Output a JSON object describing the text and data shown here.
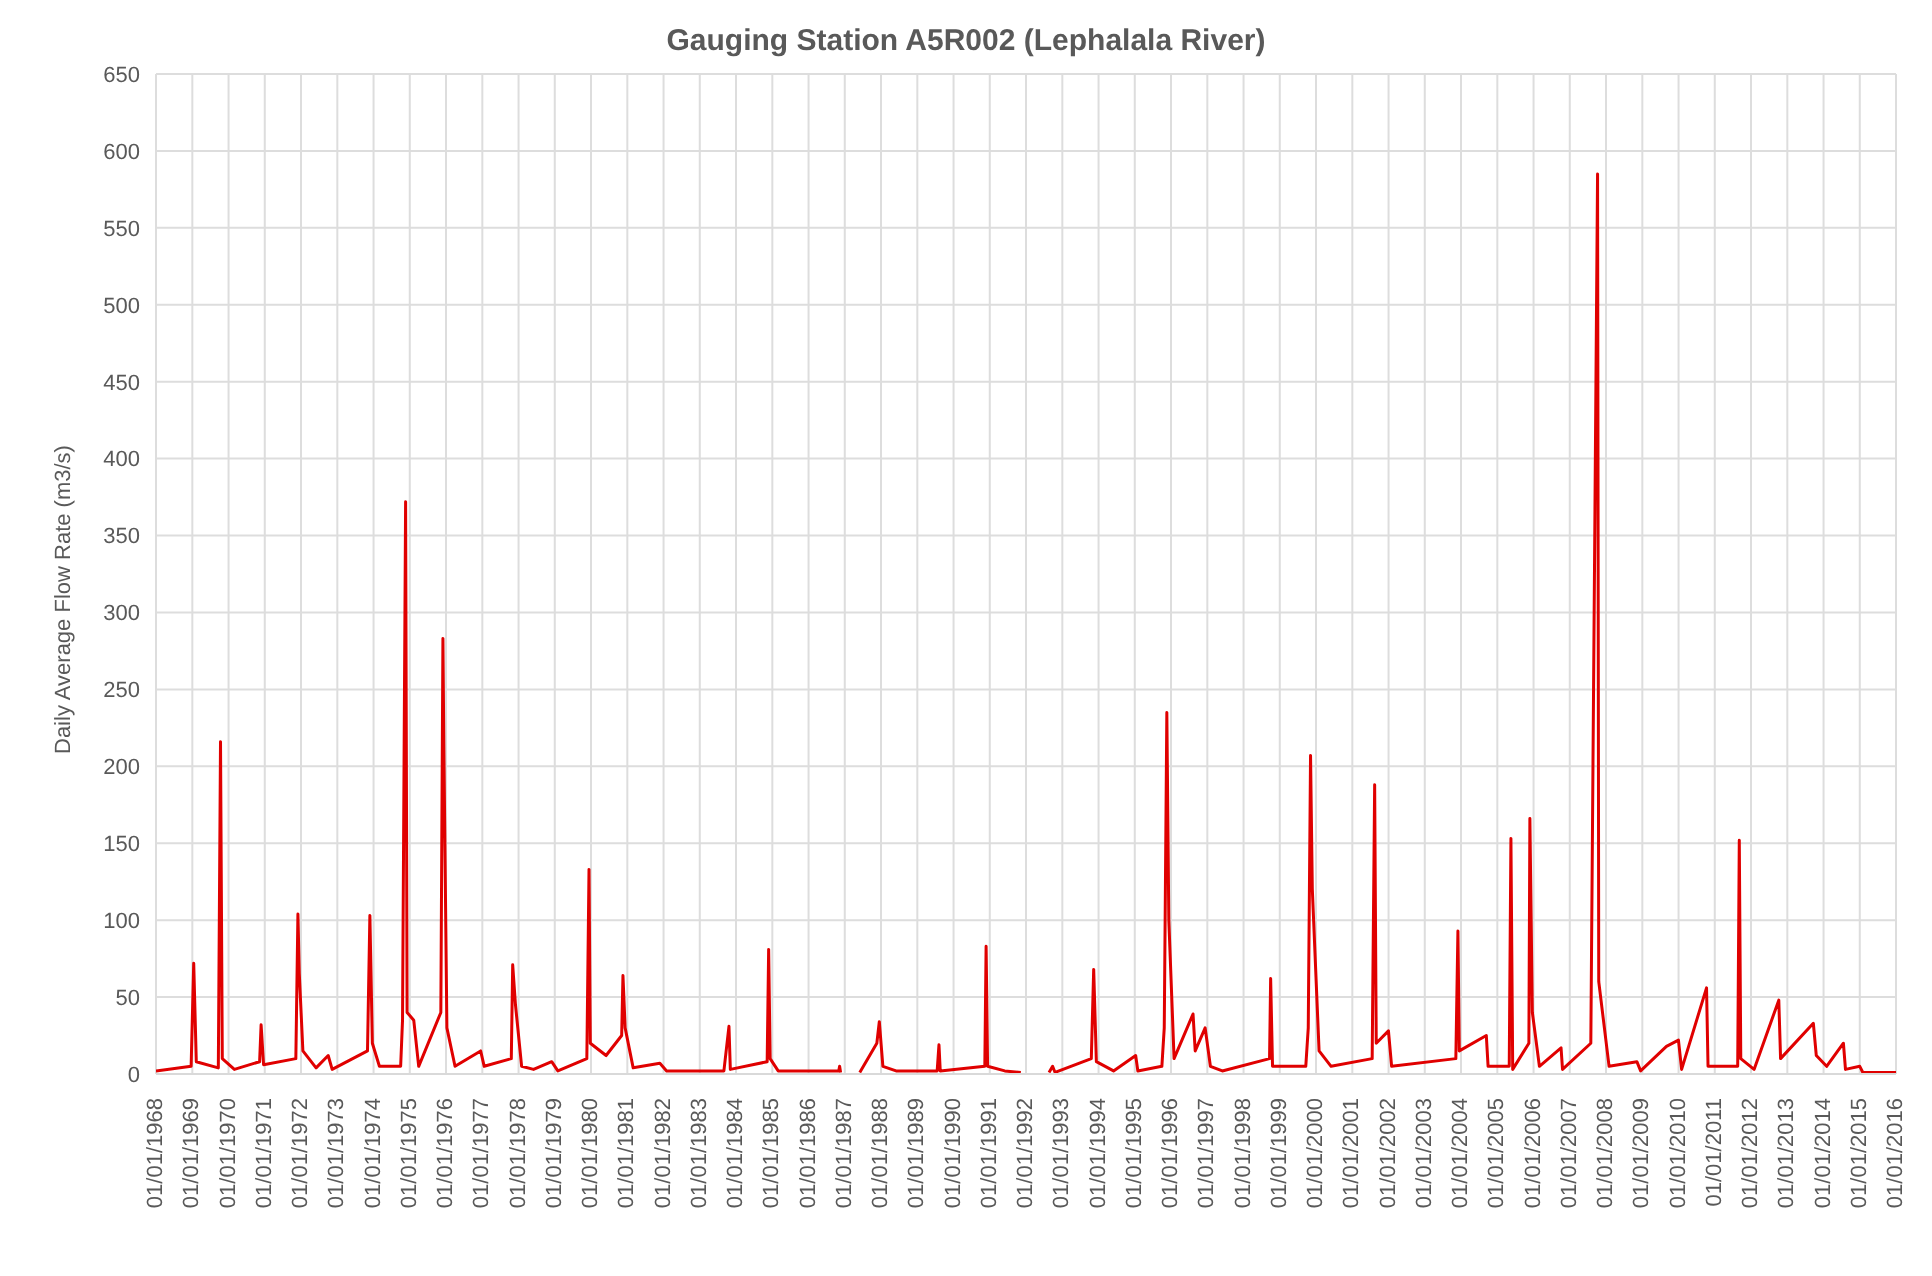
{
  "chart_data": {
    "type": "line",
    "title": "Gauging Station A5R002 (Lephalala River)",
    "ylabel": "Daily Average Flow Rate (m3/s)",
    "x": [
      "1968-01-01",
      "1968-12-20",
      "1969-01-15",
      "1969-02-10",
      "1969-09-20",
      "1969-10-12",
      "1969-10-30",
      "1970-03-01",
      "1970-11-10",
      "1970-11-25",
      "1970-12-20",
      "1971-11-10",
      "1971-12-01",
      "1971-12-15",
      "1972-01-20",
      "1972-06-01",
      "1972-10-01",
      "1972-11-10",
      "1973-11-01",
      "1973-11-25",
      "1973-12-20",
      "1974-03-01",
      "1974-10-01",
      "1974-10-20",
      "1974-11-20",
      "1974-12-05",
      "1975-02-10",
      "1975-04-01",
      "1975-11-10",
      "1975-12-01",
      "1975-12-10",
      "1976-01-10",
      "1976-04-01",
      "1976-12-15",
      "1977-01-20",
      "1977-10-20",
      "1977-11-03",
      "1977-12-01",
      "1978-02-01",
      "1978-06-01",
      "1978-12-01",
      "1979-02-01",
      "1979-11-20",
      "1979-12-12",
      "1979-12-25",
      "1980-06-01",
      "1980-11-05",
      "1980-11-18",
      "1980-12-10",
      "1981-03-01",
      "1981-11-25",
      "1982-02-01",
      "1983-09-01",
      "1983-10-22",
      "1983-11-05",
      "1984-11-10",
      "1984-11-25",
      "1984-12-10",
      "1985-03-01",
      "1986-11-01",
      "1986-11-10",
      "1986-11-20",
      "1987-04-01",
      "1987-06-01",
      "1987-11-20",
      "1987-12-15",
      "1988-01-20",
      "1988-06-01",
      "1989-07-20",
      "1989-08-07",
      "1989-08-20",
      "1990-11-12",
      "1990-11-25",
      "1990-12-10",
      "1991-06-01",
      "1991-11-10",
      "1991-12-01",
      "1992-08-20",
      "1992-09-25",
      "1992-10-20",
      "1993-10-20",
      "1993-11-13",
      "1993-12-10",
      "1994-06-01",
      "1995-01-10",
      "1995-02-01",
      "1995-10-01",
      "1995-10-25",
      "1995-11-20",
      "1995-12-10",
      "1996-02-01",
      "1996-08-10",
      "1996-09-01",
      "1996-12-10",
      "1997-02-01",
      "1997-06-01",
      "1998-09-20",
      "1998-10-01",
      "1998-10-20",
      "1999-09-20",
      "1999-10-15",
      "1999-11-07",
      "1999-11-25",
      "2000-02-01",
      "2000-06-01",
      "2001-07-20",
      "2001-08-14",
      "2001-08-30",
      "2001-12-31",
      "2002-02-01",
      "2003-11-10",
      "2003-12-01",
      "2003-12-15",
      "2004-09-12",
      "2004-09-30",
      "2005-05-01",
      "2005-05-18",
      "2005-06-05",
      "2005-11-15",
      "2005-11-25",
      "2005-12-20",
      "2006-03-01",
      "2006-10-05",
      "2006-10-20",
      "2007-08-01",
      "2007-10-08",
      "2007-10-20",
      "2008-02-01",
      "2008-11-07",
      "2008-12-15",
      "2009-09-01",
      "2009-12-31",
      "2010-02-01",
      "2010-10-10",
      "2010-10-25",
      "2011-08-20",
      "2011-09-05",
      "2011-09-20",
      "2012-02-01",
      "2012-10-07",
      "2012-10-25",
      "2013-09-20",
      "2013-10-20",
      "2014-02-01",
      "2014-07-20",
      "2014-08-10",
      "2015-01-01",
      "2015-02-01",
      "2016-01-01"
    ],
    "series": [
      {
        "color": "#e00000",
        "values": [
          2,
          5,
          72,
          8,
          4,
          216,
          10,
          3,
          8,
          32,
          6,
          10,
          104,
          65,
          15,
          4,
          12,
          3,
          15,
          103,
          20,
          5,
          5,
          35,
          372,
          40,
          35,
          5,
          40,
          283,
          215,
          30,
          5,
          15,
          5,
          10,
          71,
          45,
          5,
          3,
          8,
          2,
          10,
          133,
          20,
          12,
          25,
          64,
          30,
          4,
          7,
          2,
          2,
          31,
          3,
          8,
          81,
          10,
          2,
          2,
          5,
          1,
          null,
          1,
          20,
          34,
          5,
          2,
          2,
          19,
          2,
          5,
          83,
          5,
          2,
          1,
          null,
          1,
          5,
          1,
          10,
          68,
          8,
          2,
          12,
          2,
          5,
          30,
          235,
          100,
          10,
          39,
          15,
          30,
          5,
          2,
          10,
          62,
          5,
          5,
          30,
          207,
          120,
          15,
          5,
          10,
          188,
          20,
          28,
          5,
          10,
          93,
          15,
          25,
          5,
          5,
          153,
          3,
          20,
          166,
          40,
          5,
          17,
          3,
          20,
          585,
          60,
          5,
          8,
          2,
          18,
          22,
          3,
          56,
          5,
          5,
          152,
          10,
          3,
          48,
          10,
          33,
          12,
          5,
          20,
          3,
          5,
          1,
          1
        ]
      }
    ],
    "xlim": [
      "1968-01-01",
      "2016-01-01"
    ],
    "xticks": [
      {
        "value": "1968-01-01",
        "label": "01/01/1968"
      },
      {
        "value": "1969-01-01",
        "label": "01/01/1969"
      },
      {
        "value": "1970-01-01",
        "label": "01/01/1970"
      },
      {
        "value": "1971-01-01",
        "label": "01/01/1971"
      },
      {
        "value": "1972-01-01",
        "label": "01/01/1972"
      },
      {
        "value": "1973-01-01",
        "label": "01/01/1973"
      },
      {
        "value": "1974-01-01",
        "label": "01/01/1974"
      },
      {
        "value": "1975-01-01",
        "label": "01/01/1975"
      },
      {
        "value": "1976-01-01",
        "label": "01/01/1976"
      },
      {
        "value": "1977-01-01",
        "label": "01/01/1977"
      },
      {
        "value": "1978-01-01",
        "label": "01/01/1978"
      },
      {
        "value": "1979-01-01",
        "label": "01/01/1979"
      },
      {
        "value": "1980-01-01",
        "label": "01/01/1980"
      },
      {
        "value": "1981-01-01",
        "label": "01/01/1981"
      },
      {
        "value": "1982-01-01",
        "label": "01/01/1982"
      },
      {
        "value": "1983-01-01",
        "label": "01/01/1983"
      },
      {
        "value": "1984-01-01",
        "label": "01/01/1984"
      },
      {
        "value": "1985-01-01",
        "label": "01/01/1985"
      },
      {
        "value": "1986-01-01",
        "label": "01/01/1986"
      },
      {
        "value": "1987-01-01",
        "label": "01/01/1987"
      },
      {
        "value": "1988-01-01",
        "label": "01/01/1988"
      },
      {
        "value": "1989-01-01",
        "label": "01/01/1989"
      },
      {
        "value": "1990-01-01",
        "label": "01/01/1990"
      },
      {
        "value": "1991-01-01",
        "label": "01/01/1991"
      },
      {
        "value": "1992-01-01",
        "label": "01/01/1992"
      },
      {
        "value": "1993-01-01",
        "label": "01/01/1993"
      },
      {
        "value": "1994-01-01",
        "label": "01/01/1994"
      },
      {
        "value": "1995-01-01",
        "label": "01/01/1995"
      },
      {
        "value": "1996-01-01",
        "label": "01/01/1996"
      },
      {
        "value": "1997-01-01",
        "label": "01/01/1997"
      },
      {
        "value": "1998-01-01",
        "label": "01/01/1998"
      },
      {
        "value": "1999-01-01",
        "label": "01/01/1999"
      },
      {
        "value": "2000-01-01",
        "label": "01/01/2000"
      },
      {
        "value": "2001-01-01",
        "label": "01/01/2001"
      },
      {
        "value": "2002-01-01",
        "label": "01/01/2002"
      },
      {
        "value": "2003-01-01",
        "label": "01/01/2003"
      },
      {
        "value": "2004-01-01",
        "label": "01/01/2004"
      },
      {
        "value": "2005-01-01",
        "label": "01/01/2005"
      },
      {
        "value": "2006-01-01",
        "label": "01/01/2006"
      },
      {
        "value": "2007-01-01",
        "label": "01/01/2007"
      },
      {
        "value": "2008-01-01",
        "label": "01/01/2008"
      },
      {
        "value": "2009-01-01",
        "label": "01/01/2009"
      },
      {
        "value": "2010-01-01",
        "label": "01/01/2010"
      },
      {
        "value": "2011-01-01",
        "label": "01/01/2011"
      },
      {
        "value": "2012-01-01",
        "label": "01/01/2012"
      },
      {
        "value": "2013-01-01",
        "label": "01/01/2013"
      },
      {
        "value": "2014-01-01",
        "label": "01/01/2014"
      },
      {
        "value": "2015-01-01",
        "label": "01/01/2015"
      },
      {
        "value": "2016-01-01",
        "label": "01/01/2016"
      }
    ],
    "ylim": [
      0,
      650
    ],
    "yticks": [
      0,
      50,
      100,
      150,
      200,
      250,
      300,
      350,
      400,
      450,
      500,
      550,
      600,
      650
    ],
    "grid": true,
    "marker": "none",
    "line_style": "solid"
  }
}
